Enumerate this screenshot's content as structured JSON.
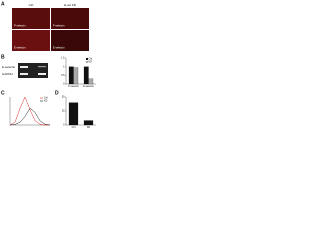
{
  "panel_a": {
    "label": "A",
    "columns": [
      "Ctrl",
      "E-sel KD"
    ],
    "image_labels": [
      "P-selectin",
      "E-selectin"
    ]
  },
  "panel_b": {
    "label": "B",
    "blot_labels": [
      "E-selectin",
      "GAPDH"
    ],
    "chart": {
      "type": "bar",
      "categories": [
        "P-selectin",
        "E-selectin"
      ],
      "series": [
        {
          "name": "Ctrl",
          "color": "#111111",
          "values": [
            1.0,
            1.0
          ]
        },
        {
          "name": "KD",
          "color": "#aaaaaa",
          "values": [
            0.95,
            0.3
          ]
        }
      ],
      "ylim": [
        0,
        1.5
      ],
      "yticks": [
        0,
        0.5,
        1,
        1.5
      ]
    }
  },
  "panel_c": {
    "label": "C",
    "chart": {
      "type": "line",
      "x": [
        0,
        0.5,
        1,
        1.5,
        2,
        2.5,
        3,
        3.5,
        4
      ],
      "series": [
        {
          "name": "Ctrl",
          "color": "#e03030",
          "values": [
            0,
            10,
            60,
            100,
            55,
            15,
            3,
            0,
            0
          ]
        },
        {
          "name": "KD",
          "color": "#222222",
          "values": [
            0,
            2,
            10,
            30,
            60,
            45,
            15,
            3,
            0
          ]
        }
      ],
      "xlim": [
        0,
        4
      ],
      "ylim": [
        0,
        100
      ]
    }
  },
  "panel_d": {
    "label": "D",
    "chart": {
      "type": "bar",
      "categories": [
        "Ctrl",
        "KD"
      ],
      "series": [
        {
          "name": "Adhesion",
          "color": "#111111",
          "values": [
            40,
            8
          ]
        }
      ],
      "ylim": [
        0,
        50
      ],
      "yticks": [
        0,
        25,
        50
      ]
    }
  }
}
